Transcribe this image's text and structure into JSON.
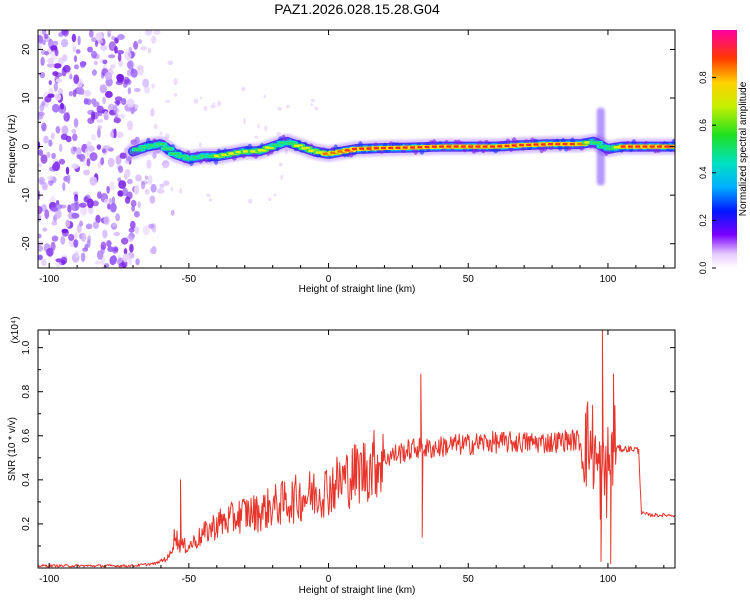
{
  "title": "PAZ1.2026.028.15.28.G04",
  "chart_data": [
    {
      "type": "heatmap",
      "name": "spectrogram",
      "xlabel": "Height of straight line (km)",
      "ylabel": "Frequency (Hz)",
      "xlim": [
        -104,
        124
      ],
      "ylim": [
        -25,
        24
      ],
      "xticks": [
        -100,
        -50,
        0,
        50,
        100
      ],
      "yticks": [
        -20,
        -10,
        0,
        10,
        20
      ],
      "colorbar": {
        "label": "Normalized spectral amplitude",
        "range": [
          0,
          1
        ],
        "ticks": [
          "0.0",
          "0.2",
          "0.4",
          "0.6",
          "0.8"
        ],
        "tick_values": [
          0,
          0.2,
          0.4,
          0.6,
          0.8
        ]
      },
      "noise_region_km": [
        -104,
        -62
      ],
      "ridge": {
        "x": [
          -70,
          -65,
          -60,
          -55,
          -50,
          -45,
          -40,
          -35,
          -30,
          -25,
          -20,
          -15,
          -10,
          -5,
          0,
          5,
          10,
          20,
          30,
          40,
          50,
          60,
          70,
          80,
          90,
          95,
          100,
          105,
          110,
          120,
          124
        ],
        "freq": [
          -1,
          0,
          0.5,
          -1.5,
          -2.5,
          -2,
          -2,
          -1.5,
          -1,
          -1,
          0,
          1,
          0,
          -1,
          -1.5,
          -1,
          -0.5,
          -0.3,
          -0.2,
          0,
          0,
          0,
          0.3,
          0.5,
          0.5,
          1,
          -0.5,
          0,
          0,
          0,
          0
        ],
        "amplitude": [
          0.4,
          0.5,
          0.55,
          0.4,
          0.45,
          0.55,
          0.6,
          0.65,
          0.65,
          0.6,
          0.6,
          0.55,
          0.65,
          0.7,
          0.85,
          0.9,
          0.9,
          0.95,
          0.95,
          0.95,
          0.95,
          0.95,
          0.95,
          0.95,
          0.95,
          0.5,
          0.4,
          0.95,
          0.95,
          0.95,
          0.95
        ]
      }
    },
    {
      "type": "line",
      "name": "snr",
      "xlabel": "Height of straight line (km)",
      "ylabel": "SNR (10 * v/v)",
      "y_scale_label": "(x10⁴)",
      "xlim": [
        -104,
        124
      ],
      "ylim": [
        0,
        1.08
      ],
      "xticks": [
        -100,
        -50,
        0,
        50,
        100
      ],
      "yticks": [
        0.2,
        0.4,
        0.6,
        0.8,
        1.0
      ],
      "ytick_labels": [
        "0.2",
        "0.4",
        "0.6",
        "0.8",
        "1.0"
      ],
      "color": "#e8352b",
      "envelope": {
        "x": [
          -104,
          -70,
          -62,
          -57,
          -55,
          -53,
          -50,
          -45,
          -40,
          -35,
          -30,
          -25,
          -20,
          -15,
          -10,
          -5,
          0,
          5,
          10,
          15,
          20,
          25,
          30,
          33,
          34,
          35,
          40,
          45,
          50,
          55,
          60,
          65,
          70,
          75,
          80,
          85,
          90,
          95,
          96,
          98,
          100,
          102,
          105,
          110,
          111,
          112,
          115,
          120,
          124
        ],
        "y": [
          0.01,
          0.01,
          0.02,
          0.05,
          0.15,
          0.1,
          0.1,
          0.15,
          0.2,
          0.22,
          0.25,
          0.25,
          0.28,
          0.3,
          0.32,
          0.34,
          0.36,
          0.4,
          0.43,
          0.46,
          0.5,
          0.52,
          0.54,
          0.55,
          0.55,
          0.54,
          0.55,
          0.56,
          0.56,
          0.57,
          0.57,
          0.57,
          0.57,
          0.57,
          0.57,
          0.58,
          0.58,
          0.55,
          0.45,
          0.4,
          0.45,
          0.55,
          0.54,
          0.54,
          0.53,
          0.25,
          0.24,
          0.24,
          0.24
        ]
      },
      "spikes": [
        {
          "x": -53,
          "y": 0.4
        },
        {
          "x": 33,
          "y": 0.88
        },
        {
          "x": 33.5,
          "y": 0.14
        },
        {
          "x": 98,
          "y": 1.08
        },
        {
          "x": 97.5,
          "y": 0.03
        },
        {
          "x": 101,
          "y": 0.02
        },
        {
          "x": 102,
          "y": 0.88
        }
      ]
    }
  ]
}
